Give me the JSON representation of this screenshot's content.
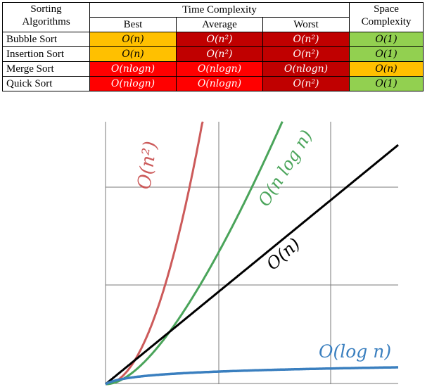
{
  "table": {
    "header": {
      "alg_line1": "Sorting",
      "alg_line2": "Algorithms",
      "time": "Time Complexity",
      "space_line1": "Space",
      "space_line2": "Complexity",
      "best": "Best",
      "average": "Average",
      "worst": "Worst"
    },
    "rows": [
      {
        "name": "Bubble Sort",
        "best": "O(n)",
        "average": "O(n²)",
        "worst": "O(n²)",
        "space": "O(1)"
      },
      {
        "name": "Insertion Sort",
        "best": "O(n)",
        "average": "O(n²)",
        "worst": "O(n²)",
        "space": "O(1)"
      },
      {
        "name": "Merge Sort",
        "best": "O(nlogn)",
        "average": "O(nlogn)",
        "worst": "O(nlogn)",
        "space": "O(n)"
      },
      {
        "name": "Quick Sort",
        "best": "O(nlogn)",
        "average": "O(nlogn)",
        "worst": "O(n²)",
        "space": "O(1)"
      }
    ],
    "colors": {
      "orange": "#ffc000",
      "red": "#ff0000",
      "dark_red": "#c00000",
      "green": "#92d050"
    }
  },
  "graph": {
    "curves": [
      {
        "label": "O(n²)",
        "color": "#cc5a5a"
      },
      {
        "label": "O(n log n)",
        "color": "#4aa45a"
      },
      {
        "label": "O(n)",
        "color": "#000000"
      },
      {
        "label": "O(log n)",
        "color": "#3a7fbf"
      }
    ]
  }
}
